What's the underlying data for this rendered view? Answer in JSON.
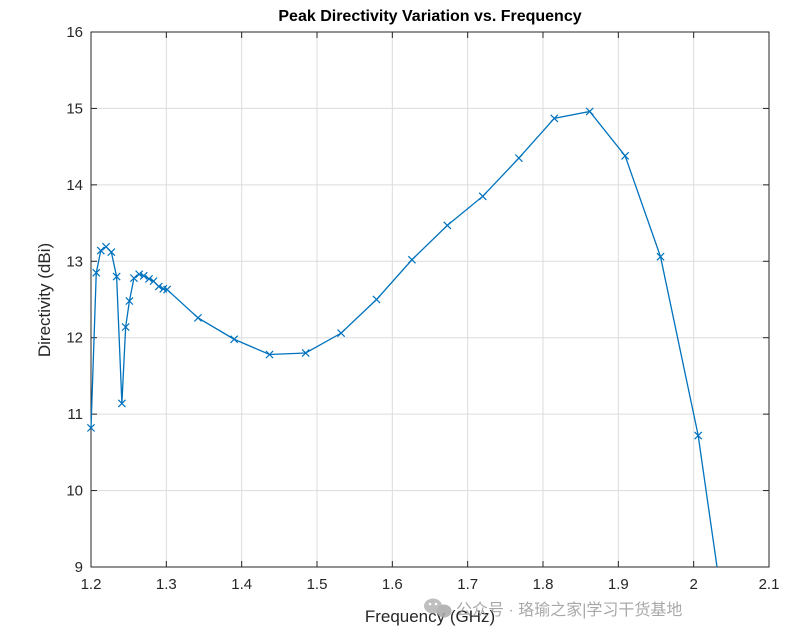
{
  "chart_data": {
    "type": "line",
    "title": "Peak Directivity Variation vs. Frequency",
    "xlabel": "Frequency (GHz)",
    "ylabel": "Directivity (dBi)",
    "xlim": [
      1.2,
      2.1
    ],
    "ylim": [
      9,
      16
    ],
    "x_ticks": [
      1.2,
      1.3,
      1.4,
      1.5,
      1.6,
      1.7,
      1.8,
      1.9,
      2.0,
      2.1
    ],
    "x_tick_labels": [
      "1.2",
      "1.3",
      "1.4",
      "1.5",
      "1.6",
      "1.7",
      "1.8",
      "1.9",
      "2",
      "2.1"
    ],
    "y_ticks": [
      9,
      10,
      11,
      12,
      13,
      14,
      15,
      16
    ],
    "y_tick_labels": [
      "9",
      "10",
      "11",
      "12",
      "13",
      "14",
      "15",
      "16"
    ],
    "grid": true,
    "marker": "x",
    "color": "#0072BD",
    "series": [
      {
        "name": "Peak Directivity",
        "x": [
          1.2,
          1.207,
          1.213,
          1.22,
          1.227,
          1.234,
          1.241,
          1.246,
          1.251,
          1.257,
          1.264,
          1.27,
          1.277,
          1.283,
          1.29,
          1.296,
          1.301,
          1.342,
          1.39,
          1.437,
          1.485,
          1.532,
          1.579,
          1.626,
          1.673,
          1.72,
          1.768,
          1.815,
          1.862,
          1.909,
          1.956,
          2.006,
          2.031
        ],
        "y": [
          10.82,
          12.85,
          13.14,
          13.19,
          13.12,
          12.8,
          11.14,
          12.14,
          12.48,
          12.78,
          12.83,
          12.81,
          12.77,
          12.74,
          12.67,
          12.64,
          12.63,
          12.26,
          11.98,
          11.78,
          11.8,
          12.06,
          12.5,
          13.02,
          13.47,
          13.85,
          14.35,
          14.87,
          14.96,
          14.38,
          13.06,
          10.72,
          9.0
        ]
      }
    ]
  },
  "watermark": {
    "text": "公众号 · 珞瑜之家|学习干货基地"
  }
}
